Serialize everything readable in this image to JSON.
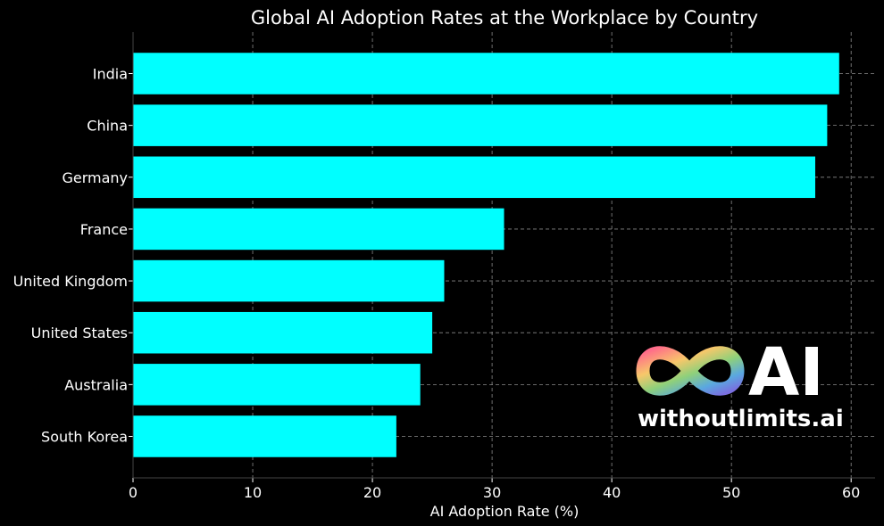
{
  "chart_data": {
    "type": "bar",
    "orientation": "horizontal",
    "title": "Global AI Adoption Rates at the Workplace by Country",
    "xlabel": "AI Adoption Rate (%)",
    "ylabel": "",
    "categories": [
      "India",
      "China",
      "Germany",
      "France",
      "United Kingdom",
      "United States",
      "Australia",
      "South Korea"
    ],
    "values": [
      59,
      58,
      57,
      31,
      26,
      25,
      24,
      22
    ],
    "xlim": [
      0,
      62
    ],
    "xticks": [
      "0",
      "10",
      "20",
      "30",
      "40",
      "50",
      "60"
    ],
    "grid": true,
    "bar_color": "#00FFFF",
    "background_color": "#000000",
    "text_color": "#FFFFFF"
  },
  "logo": {
    "mark": "AI",
    "tagline": "withoutlimits.ai"
  }
}
